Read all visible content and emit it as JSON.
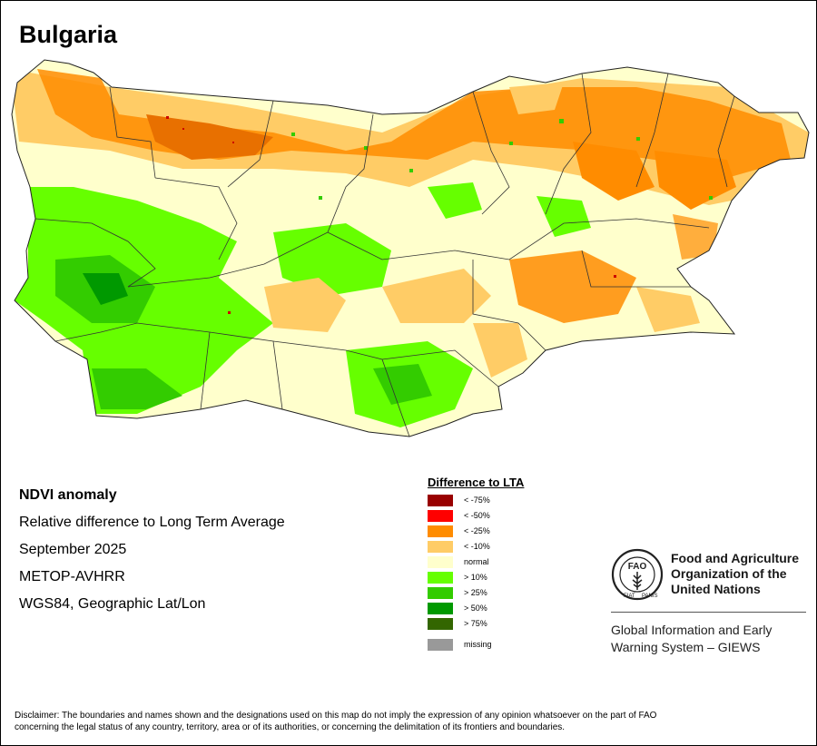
{
  "map": {
    "title": "Bulgaria",
    "info": {
      "product": "NDVI anomaly",
      "description": "Relative difference to Long Term Average",
      "period": "September 2025",
      "sensor": "METOP-AVHRR",
      "projection": "WGS84, Geographic Lat/Lon"
    },
    "legend": {
      "title": "Difference to LTA",
      "items": [
        {
          "label": "< -75%",
          "color": "#990000"
        },
        {
          "label": "< -50%",
          "color": "#ff0000"
        },
        {
          "label": "< -25%",
          "color": "#ff8c00"
        },
        {
          "label": "< -10%",
          "color": "#ffcc66"
        },
        {
          "label": "normal",
          "color": "#ffffcc"
        },
        {
          "label": "> 10%",
          "color": "#66ff00"
        },
        {
          "label": "> 25%",
          "color": "#33cc00"
        },
        {
          "label": "> 50%",
          "color": "#009900"
        },
        {
          "label": "> 75%",
          "color": "#336600"
        }
      ],
      "missing": {
        "label": "missing",
        "color": "#999999"
      }
    },
    "organization": {
      "logo_text": {
        "top": "FAO",
        "bottom_left": "FIAT",
        "bottom_right": "PANIS"
      },
      "name_lines": [
        "Food and Agriculture",
        "Organization of the",
        "United Nations"
      ],
      "system_lines": [
        "Global Information and Early",
        "Warning System – GIEWS"
      ]
    },
    "disclaimer_lines": [
      "Disclaimer: The boundaries and names shown and the designations used on this map do not imply the expression of any opinion whatsoever on the part of FAO",
      "concerning the legal status of any country, territory, area or of its authorities, or concerning the delimitation of its frontiers and boundaries."
    ]
  }
}
